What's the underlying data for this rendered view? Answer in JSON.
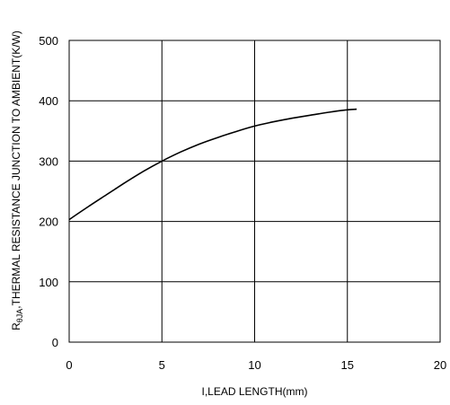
{
  "chart_data": {
    "type": "line",
    "title": "",
    "xlabel": "I,LEAD LENGTH(mm)",
    "ylabel_main": "R",
    "ylabel_sub": "θJA",
    "ylabel_rest": ",THERMAL RESISTANCE JUNCTION TO AMBIENT(K/W)",
    "xlim": [
      0,
      20
    ],
    "ylim": [
      0,
      500
    ],
    "xticks": [
      0,
      5,
      10,
      15,
      20
    ],
    "yticks": [
      0,
      100,
      200,
      300,
      400,
      500
    ],
    "grid": true,
    "series": [
      {
        "x": [
          0,
          1,
          2,
          3,
          4,
          5,
          6,
          7,
          8,
          9,
          10,
          11,
          12,
          13,
          14,
          15,
          15.5
        ],
        "values": [
          203,
          224,
          244,
          264,
          283,
          300,
          315,
          328,
          339,
          349,
          358,
          365,
          371,
          376,
          381,
          385,
          386
        ]
      }
    ],
    "colors": {
      "line": "#000000",
      "grid": "#000000"
    }
  }
}
